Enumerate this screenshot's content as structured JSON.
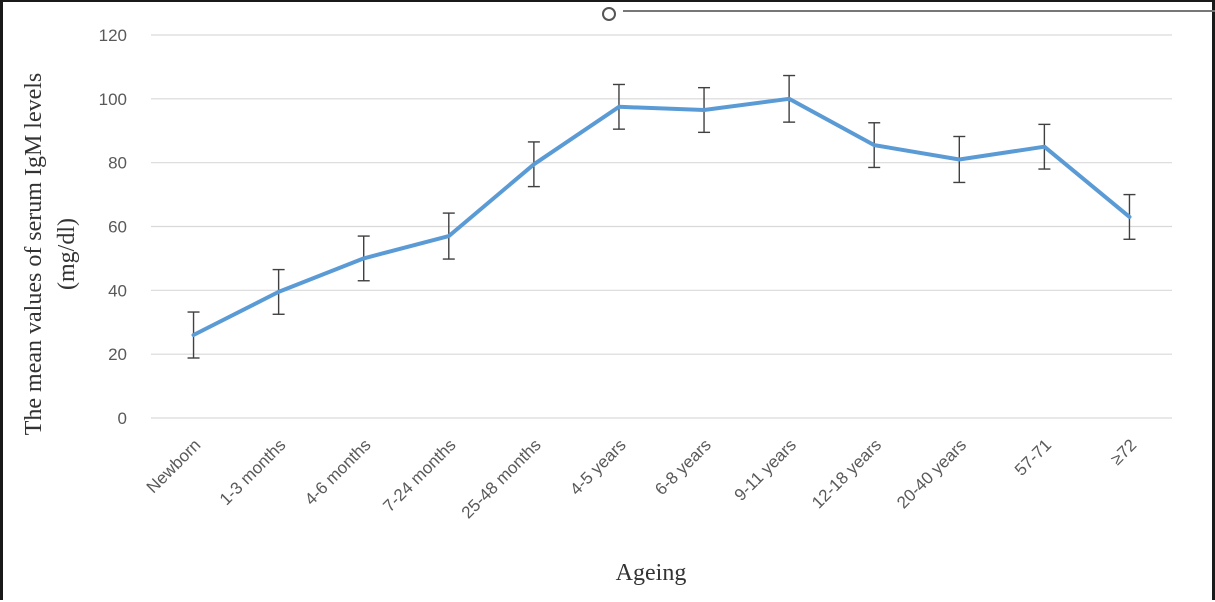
{
  "chart_data": {
    "type": "line",
    "title": "",
    "xlabel": "Ageing",
    "ylabel_lines": [
      "The mean values of serum IgM levels",
      "(mg/dl)"
    ],
    "categories": [
      "Newborn",
      "1-3 months",
      "4-6 months",
      "7-24 months",
      "25-48 months",
      "4-5 years",
      "6-8 years",
      "9-11 years",
      "12-18 years",
      "20-40 years",
      "57-71",
      "≥72"
    ],
    "series": [
      {
        "values": [
          26,
          39.5,
          50,
          57,
          79.5,
          97.5,
          96.5,
          100,
          85.5,
          81,
          85,
          63
        ],
        "error": [
          7.2,
          7,
          7,
          7.2,
          7,
          7,
          7,
          7.3,
          7,
          7.2,
          7,
          7
        ],
        "color": "#5B9BD5"
      }
    ],
    "ylim": [
      0,
      120
    ],
    "yticks": [
      "0",
      "20",
      "40",
      "60",
      "80",
      "100",
      "120"
    ],
    "grid": true,
    "legend": "none"
  }
}
